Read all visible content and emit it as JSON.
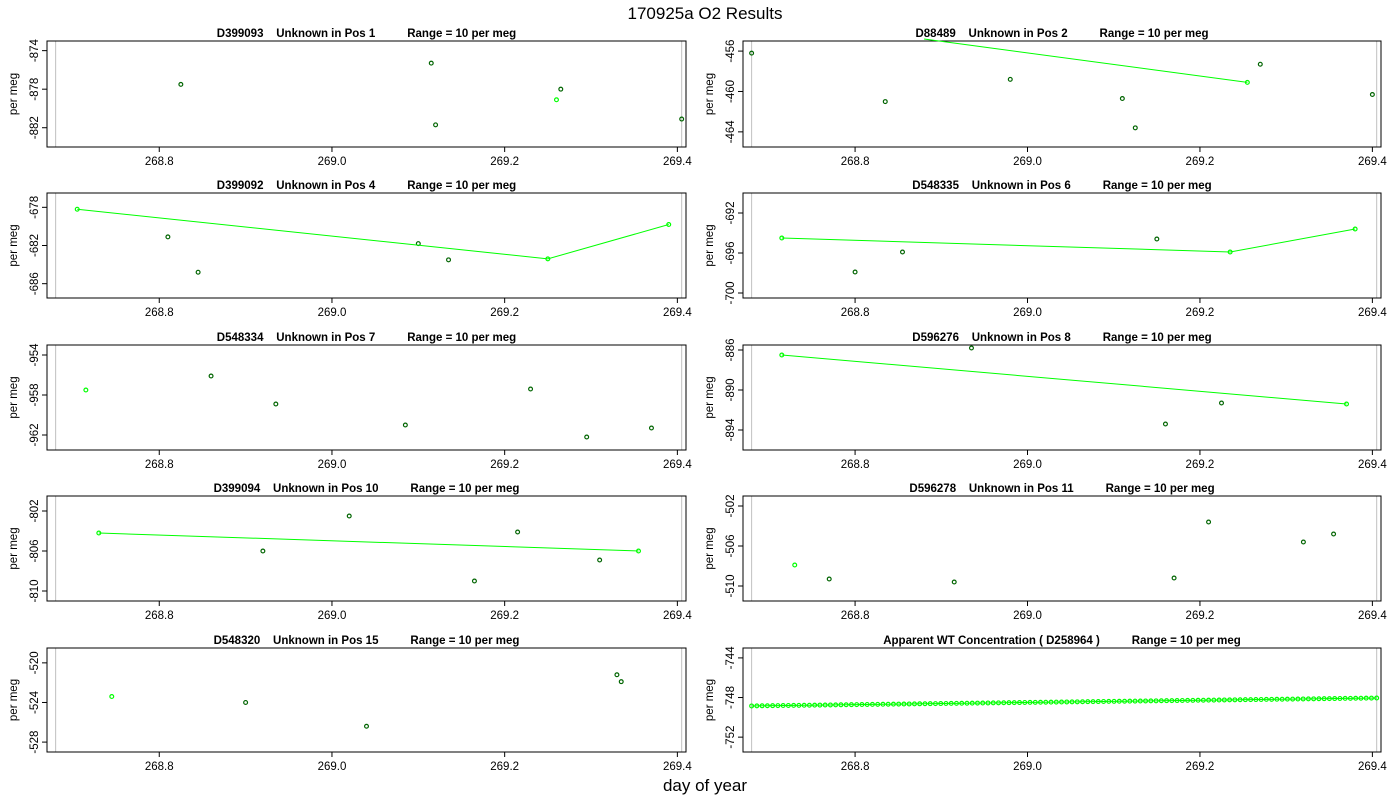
{
  "title": "170925a  O2 Results",
  "xlabel": "day of year",
  "colors": {
    "sample": "#006400",
    "reference": "#00ff00",
    "frame": "#000000",
    "vline": "#c0c0c0"
  },
  "chart_data": [
    {
      "type": "scatter",
      "title": "D399093    Unknown in Pos 1          Range = 10 per meg",
      "ylabel": "per meg",
      "xlim": [
        268.67,
        269.41
      ],
      "ylim": [
        -884,
        -873
      ],
      "xticks": [
        "268.8",
        "269.0",
        "269.2",
        "269.4"
      ],
      "xtick_values": [
        268.8,
        269.0,
        269.2,
        269.4
      ],
      "yticks": [
        "-874",
        "-878",
        "-882"
      ],
      "ytick_values": [
        -874,
        -878,
        -882
      ],
      "vlines": [
        268.68,
        269.405
      ],
      "series": [
        {
          "kind": "sample",
          "x": [
            268.825,
            269.115,
            269.12,
            269.265,
            269.405
          ],
          "y": [
            -877.5,
            -875.3,
            -881.7,
            -878.0,
            -881.1
          ]
        },
        {
          "kind": "reference",
          "x": [
            269.26
          ],
          "y": [
            -879.1
          ]
        }
      ]
    },
    {
      "type": "scatter",
      "title": "D88489    Unknown in Pos 2          Range = 10 per meg",
      "ylabel": "per meg",
      "xlim": [
        268.67,
        269.41
      ],
      "ylim": [
        -465.5,
        -455
      ],
      "xticks": [
        "268.8",
        "269.0",
        "269.2",
        "269.4"
      ],
      "xtick_values": [
        268.8,
        269.0,
        269.2,
        269.4
      ],
      "yticks": [
        "-456",
        "-460",
        "-464"
      ],
      "yticks_values_note": "",
      "ytick_values": [
        -456,
        -460,
        -464
      ],
      "vlines": [
        268.68,
        269.405
      ],
      "series": [
        {
          "kind": "sample",
          "x": [
            268.68,
            268.835,
            268.98,
            269.11,
            269.125,
            269.27,
            269.4
          ],
          "y": [
            -456.2,
            -461.0,
            -458.8,
            -460.7,
            -463.6,
            -457.3,
            -460.3
          ]
        },
        {
          "kind": "reference",
          "x": [
            269.255
          ],
          "y": [
            -459.1
          ],
          "line": {
            "x": [
              268.88,
              269.255
            ],
            "y": [
              -454.8,
              -459.1
            ]
          }
        }
      ]
    },
    {
      "type": "scatter",
      "title": "D399092    Unknown in Pos 4          Range = 10 per meg",
      "ylabel": "per meg",
      "xlim": [
        268.67,
        269.41
      ],
      "ylim": [
        -687.5,
        -676.5
      ],
      "xticks": [
        "268.8",
        "269.0",
        "269.2",
        "269.4"
      ],
      "xtick_values": [
        268.8,
        269.0,
        269.2,
        269.4
      ],
      "yticks": [
        "-678",
        "-682",
        "-686"
      ],
      "ytick_values": [
        -678,
        -682,
        -686
      ],
      "vlines": [
        268.68,
        269.405
      ],
      "series": [
        {
          "kind": "sample",
          "x": [
            268.81,
            268.845,
            269.1,
            269.135
          ],
          "y": [
            -681.1,
            -684.8,
            -681.8,
            -683.5
          ]
        },
        {
          "kind": "reference",
          "x": [
            268.705,
            269.25,
            269.39
          ],
          "y": [
            -678.2,
            -683.4,
            -679.8
          ]
        }
      ]
    },
    {
      "type": "scatter",
      "title": "D548335    Unknown in Pos 6          Range = 10 per meg",
      "ylabel": "per meg",
      "xlim": [
        268.67,
        269.41
      ],
      "ylim": [
        -700.5,
        -690
      ],
      "xticks": [
        "268.8",
        "269.0",
        "269.2",
        "269.4"
      ],
      "xtick_values": [
        268.8,
        269.0,
        269.2,
        269.4
      ],
      "yticks": [
        "-692",
        "-696",
        "-700"
      ],
      "ytick_values": [
        -692,
        -696,
        -700
      ],
      "vlines": [
        268.68,
        269.405
      ],
      "series": [
        {
          "kind": "sample",
          "x": [
            268.8,
            268.855,
            269.15
          ],
          "y": [
            -697.9,
            -695.9,
            -694.6
          ]
        },
        {
          "kind": "reference",
          "x": [
            268.715,
            269.235,
            269.38
          ],
          "y": [
            -694.5,
            -695.9,
            -693.6
          ]
        }
      ]
    },
    {
      "type": "scatter",
      "title": "D548334    Unknown in Pos 7          Range = 10 per meg",
      "ylabel": "per meg",
      "xlim": [
        268.67,
        269.41
      ],
      "ylim": [
        -963.5,
        -953
      ],
      "xticks": [
        "268.8",
        "269.0",
        "269.2",
        "269.4"
      ],
      "xtick_values": [
        268.8,
        269.0,
        269.2,
        269.4
      ],
      "yticks": [
        "-954",
        "-958",
        "-962"
      ],
      "ytick_values": [
        -954,
        -958,
        -962
      ],
      "vlines": [
        268.68,
        269.405
      ],
      "series": [
        {
          "kind": "sample",
          "x": [
            268.86,
            268.935,
            269.085,
            269.23,
            269.295,
            269.37
          ],
          "y": [
            -956.1,
            -958.9,
            -961.0,
            -957.4,
            -962.2,
            -961.3
          ]
        },
        {
          "kind": "reference",
          "x": [
            268.715
          ],
          "y": [
            -957.5
          ]
        }
      ]
    },
    {
      "type": "scatter",
      "title": "D596276    Unknown in Pos 8          Range = 10 per meg",
      "ylabel": "per meg",
      "xlim": [
        268.67,
        269.41
      ],
      "ylim": [
        -896,
        -885.5
      ],
      "xticks": [
        "268.8",
        "269.0",
        "269.2",
        "269.4"
      ],
      "xtick_values": [
        268.8,
        269.0,
        269.2,
        269.4
      ],
      "yticks": [
        "-886",
        "-890",
        "-894"
      ],
      "ytick_values": [
        -886,
        -890,
        -894
      ],
      "vlines": [
        268.68,
        269.405
      ],
      "series": [
        {
          "kind": "sample",
          "x": [
            268.935,
            269.16,
            269.225
          ],
          "y": [
            -885.8,
            -893.4,
            -891.3
          ]
        },
        {
          "kind": "reference",
          "x": [
            268.715,
            269.37
          ],
          "y": [
            -886.5,
            -891.4
          ]
        }
      ]
    },
    {
      "type": "scatter",
      "title": "D399094    Unknown in Pos 10          Range = 10 per meg",
      "ylabel": "per meg",
      "xlim": [
        268.67,
        269.41
      ],
      "ylim": [
        -811,
        -800.5
      ],
      "xticks": [
        "268.8",
        "269.0",
        "269.2",
        "269.4"
      ],
      "xtick_values": [
        268.8,
        269.0,
        269.2,
        269.4
      ],
      "yticks": [
        "-802",
        "-806",
        "-810"
      ],
      "ytick_values": [
        -802,
        -806,
        -810
      ],
      "vlines": [
        268.68,
        269.405
      ],
      "series": [
        {
          "kind": "sample",
          "x": [
            268.92,
            269.02,
            269.165,
            269.215,
            269.31
          ],
          "y": [
            -806.0,
            -802.5,
            -809.0,
            -804.1,
            -806.9
          ]
        },
        {
          "kind": "reference",
          "x": [
            268.73,
            269.355
          ],
          "y": [
            -804.2,
            -806.0
          ]
        }
      ]
    },
    {
      "type": "scatter",
      "title": "D596278    Unknown in Pos 11          Range = 10 per meg",
      "ylabel": "per meg",
      "xlim": [
        268.67,
        269.41
      ],
      "ylim": [
        -511.5,
        -501
      ],
      "xticks": [
        "268.8",
        "269.0",
        "269.2",
        "269.4"
      ],
      "xtick_values": [
        268.8,
        269.0,
        269.2,
        269.4
      ],
      "yticks": [
        "-502",
        "-506",
        "-510"
      ],
      "ytick_values": [
        -502,
        -506,
        -510
      ],
      "vlines": [
        268.68,
        269.405
      ],
      "series": [
        {
          "kind": "sample",
          "x": [
            268.77,
            268.915,
            269.17,
            269.21,
            269.32,
            269.355
          ],
          "y": [
            -509.3,
            -509.6,
            -509.2,
            -503.6,
            -505.6,
            -504.8
          ]
        },
        {
          "kind": "reference",
          "x": [
            268.73
          ],
          "y": [
            -507.9
          ]
        }
      ]
    },
    {
      "type": "scatter",
      "title": "D548320    Unknown in Pos 15          Range = 10 per meg",
      "ylabel": "per meg",
      "xlim": [
        268.67,
        269.41
      ],
      "ylim": [
        -529,
        -518.5
      ],
      "xticks": [
        "268.8",
        "269.0",
        "269.2",
        "269.4"
      ],
      "xtick_values": [
        268.8,
        269.0,
        269.2,
        269.4
      ],
      "yticks": [
        "-520",
        "-524",
        "-528"
      ],
      "ytick_values": [
        -520,
        -524,
        -528
      ],
      "vlines": [
        268.68,
        269.405
      ],
      "series": [
        {
          "kind": "sample",
          "x": [
            268.9,
            269.04,
            269.33,
            269.335
          ],
          "y": [
            -524.0,
            -526.4,
            -521.2,
            -521.9
          ]
        },
        {
          "kind": "reference",
          "x": [
            268.745
          ],
          "y": [
            -523.4
          ]
        }
      ]
    },
    {
      "type": "scatter",
      "title": "Apparent WT Concentration ( D258964 )          Range = 10 per meg",
      "ylabel": "per meg",
      "xlim": [
        268.67,
        269.41
      ],
      "ylim": [
        -753.5,
        -743
      ],
      "xticks": [
        "268.8",
        "269.0",
        "269.2",
        "269.4"
      ],
      "xtick_values": [
        268.8,
        269.0,
        269.2,
        269.4
      ],
      "yticks": [
        "-744",
        "-748",
        "-752"
      ],
      "ytick_values": [
        -744,
        -748,
        -752
      ],
      "vlines": [
        268.68,
        269.405
      ],
      "series": [
        {
          "kind": "reference",
          "x_start": 268.68,
          "x_end": 269.405,
          "count": 120,
          "y_start": -748.85,
          "y_end": -748.05
        }
      ]
    }
  ]
}
